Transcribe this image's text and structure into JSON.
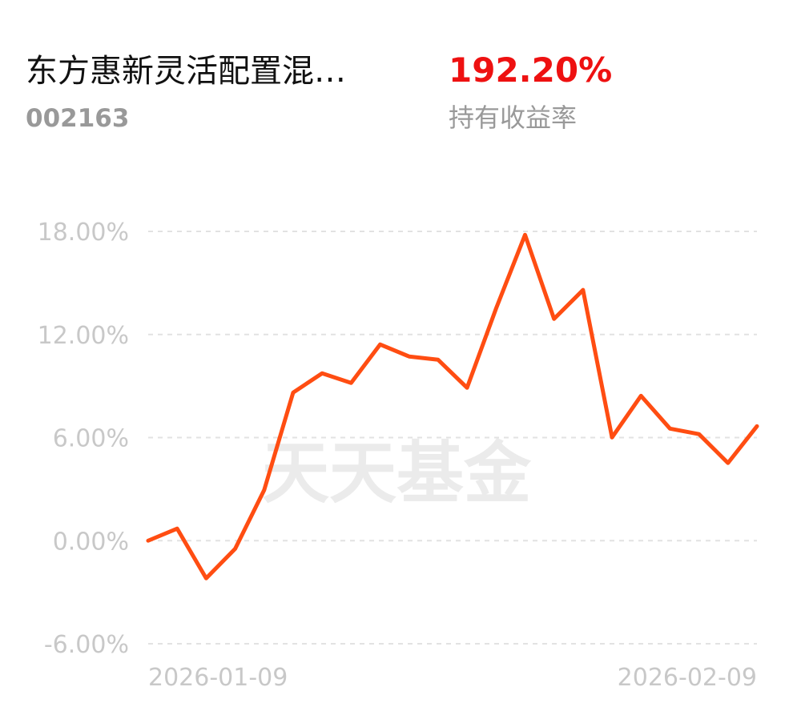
{
  "header": {
    "fund_name": "东方惠新灵活配置混…",
    "fund_code": "002163",
    "return_value": "192.20%",
    "return_label": "持有收益率"
  },
  "chart_data": {
    "type": "line",
    "watermark": "天天基金",
    "categories": [
      "2026-01-09",
      null,
      null,
      null,
      null,
      null,
      null,
      null,
      null,
      null,
      null,
      null,
      null,
      null,
      null,
      null,
      null,
      null,
      null,
      null,
      null,
      "2026-02-09"
    ],
    "series": [
      {
        "color": "#ff4d12",
        "values": [
          0,
          0.7,
          -2.19,
          -0.47,
          2.94,
          8.62,
          9.74,
          9.18,
          11.42,
          10.72,
          10.53,
          8.9,
          13.51,
          17.8,
          12.91,
          14.59,
          6.01,
          8.43,
          6.52,
          6.2,
          4.52,
          6.66
        ]
      }
    ],
    "ylim": [
      -6,
      18
    ],
    "yticks": [
      {
        "value": 18,
        "label": "18.00%"
      },
      {
        "value": 12,
        "label": "12.00%"
      },
      {
        "value": 6,
        "label": "6.00%"
      },
      {
        "value": 0,
        "label": "0.00%"
      },
      {
        "value": -6,
        "label": "-6.00%"
      }
    ],
    "grid": true
  }
}
